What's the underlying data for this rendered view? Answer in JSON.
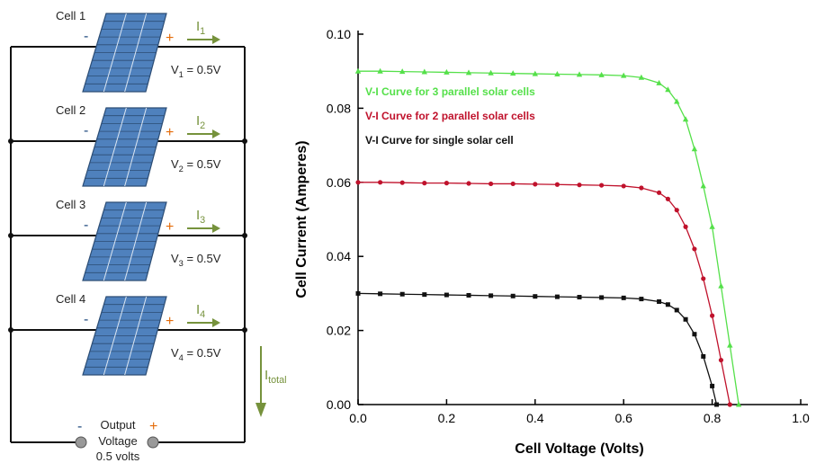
{
  "diagram": {
    "cells": [
      {
        "name": "Cell 1",
        "minus": "-",
        "plus": "+",
        "current": {
          "symbol": "I",
          "sub": "1"
        },
        "voltage": {
          "symbol": "V",
          "sub": "1",
          "text": " = 0.5V"
        }
      },
      {
        "name": "Cell 2",
        "minus": "-",
        "plus": "+",
        "current": {
          "symbol": "I",
          "sub": "2"
        },
        "voltage": {
          "symbol": "V",
          "sub": "2",
          "text": " = 0.5V"
        }
      },
      {
        "name": "Cell 3",
        "minus": "-",
        "plus": "+",
        "current": {
          "symbol": "I",
          "sub": "3"
        },
        "voltage": {
          "symbol": "V",
          "sub": "3",
          "text": " = 0.5V"
        }
      },
      {
        "name": "Cell 4",
        "minus": "-",
        "plus": "+",
        "current": {
          "symbol": "I",
          "sub": "4"
        },
        "voltage": {
          "symbol": "V",
          "sub": "4",
          "text": " = 0.5V"
        }
      }
    ],
    "total_current": {
      "symbol": "I",
      "sub": "total"
    },
    "output": {
      "minus": "-",
      "plus": "+",
      "line1": "Output",
      "line2": "Voltage",
      "line3": "0.5 volts"
    }
  },
  "chart_data": {
    "type": "line",
    "x_label": "Cell Voltage (Volts)",
    "y_label": "Cell Current (Amperes)",
    "xlim": [
      0,
      1
    ],
    "ylim": [
      0,
      0.1
    ],
    "xticks": [
      {
        "value": 0,
        "label": "0.0"
      },
      0.2,
      0.4,
      0.6,
      0.8,
      {
        "value": 1,
        "label": "1.0"
      }
    ],
    "yticks": [
      {
        "value": 0,
        "label": "0.00"
      },
      0.02,
      0.04,
      0.06,
      0.08,
      {
        "value": 0.1,
        "label": "0.10"
      }
    ],
    "series": [
      {
        "name": "V-I Curve for 3 parallel solar cells",
        "color": "#55e04a",
        "marker": "triangle",
        "x": [
          0,
          0.05,
          0.1,
          0.15,
          0.2,
          0.25,
          0.3,
          0.35,
          0.4,
          0.45,
          0.5,
          0.55,
          0.6,
          0.64,
          0.68,
          0.7,
          0.72,
          0.74,
          0.76,
          0.78,
          0.8,
          0.82,
          0.84,
          0.86
        ],
        "values": [
          0.09,
          0.09,
          0.0899,
          0.0898,
          0.0897,
          0.0896,
          0.0895,
          0.0894,
          0.0893,
          0.0892,
          0.0891,
          0.089,
          0.0888,
          0.0883,
          0.0868,
          0.085,
          0.0818,
          0.077,
          0.069,
          0.059,
          0.048,
          0.032,
          0.016,
          0
        ]
      },
      {
        "name": "V-I Curve for 2 parallel solar cells",
        "color": "#c0122c",
        "marker": "circle",
        "x": [
          0,
          0.05,
          0.1,
          0.15,
          0.2,
          0.25,
          0.3,
          0.35,
          0.4,
          0.45,
          0.5,
          0.55,
          0.6,
          0.64,
          0.68,
          0.7,
          0.72,
          0.74,
          0.76,
          0.78,
          0.8,
          0.82,
          0.84
        ],
        "values": [
          0.06,
          0.06,
          0.0599,
          0.0598,
          0.0598,
          0.0597,
          0.0596,
          0.0596,
          0.0595,
          0.0594,
          0.0593,
          0.0592,
          0.059,
          0.0585,
          0.0572,
          0.0555,
          0.0525,
          0.048,
          0.042,
          0.034,
          0.024,
          0.012,
          0
        ]
      },
      {
        "name": "V-I Curve for single solar cell",
        "color": "#111111",
        "marker": "square",
        "x": [
          0,
          0.05,
          0.1,
          0.15,
          0.2,
          0.25,
          0.3,
          0.35,
          0.4,
          0.45,
          0.5,
          0.55,
          0.6,
          0.64,
          0.68,
          0.7,
          0.72,
          0.74,
          0.76,
          0.78,
          0.8,
          0.81
        ],
        "values": [
          0.03,
          0.0299,
          0.0298,
          0.0297,
          0.0296,
          0.0295,
          0.0294,
          0.0293,
          0.0292,
          0.0291,
          0.029,
          0.0289,
          0.0288,
          0.0285,
          0.0278,
          0.027,
          0.0255,
          0.023,
          0.019,
          0.013,
          0.005,
          0
        ]
      }
    ]
  }
}
